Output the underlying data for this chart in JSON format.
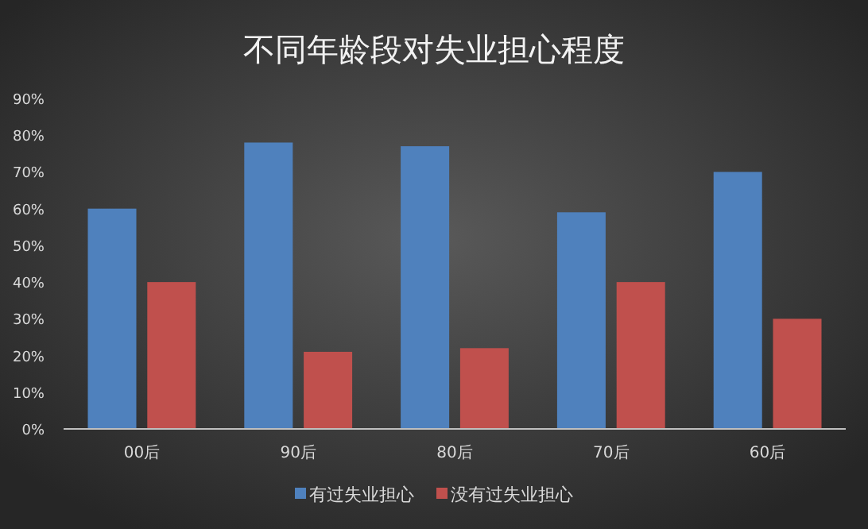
{
  "chart_data": {
    "type": "bar",
    "title": "不同年龄段对失业担心程度",
    "categories": [
      "00后",
      "90后",
      "80后",
      "70后",
      "60后"
    ],
    "series": [
      {
        "name": "有过失业担心",
        "color": "#4f81bd",
        "values": [
          60,
          78,
          77,
          59,
          70
        ]
      },
      {
        "name": "没有过失业担心",
        "color": "#c0504d",
        "values": [
          40,
          21,
          22,
          40,
          30
        ]
      }
    ],
    "ylim": [
      0,
      90
    ],
    "yticks": [
      {
        "value": 0,
        "label": "0%"
      },
      {
        "value": 10,
        "label": "10%"
      },
      {
        "value": 20,
        "label": "20%"
      },
      {
        "value": 30,
        "label": "30%"
      },
      {
        "value": 40,
        "label": "40%"
      },
      {
        "value": 50,
        "label": "50%"
      },
      {
        "value": 60,
        "label": "60%"
      },
      {
        "value": 70,
        "label": "70%"
      },
      {
        "value": 80,
        "label": "80%"
      },
      {
        "value": 90,
        "label": "90%"
      }
    ],
    "grid": false,
    "legend": "bottom"
  }
}
